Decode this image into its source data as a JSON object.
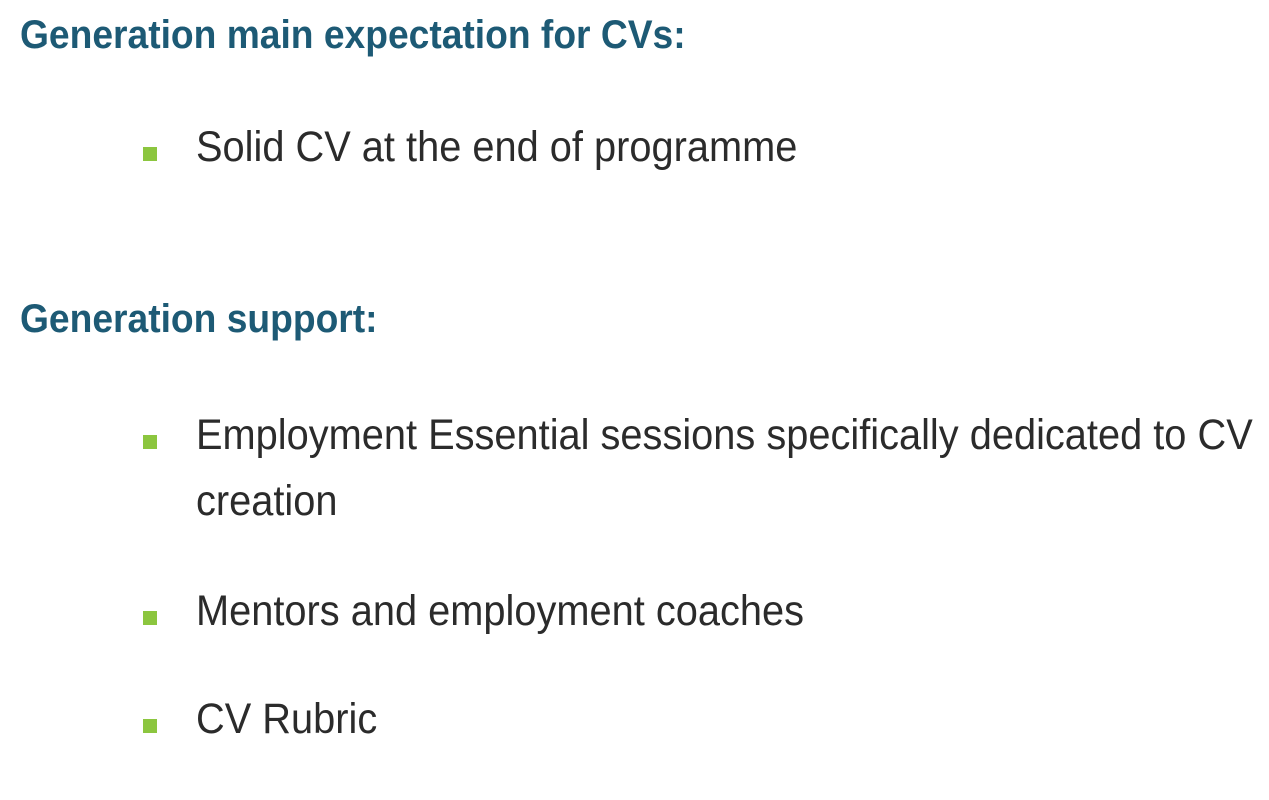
{
  "sections": [
    {
      "heading": "Generation main expectation for CVs:",
      "bullets": [
        "Solid CV at the end of programme"
      ]
    },
    {
      "heading": "Generation support:",
      "bullets": [
        "Employment Essential sessions specifically dedicated to CV creation",
        "Mentors and employment coaches",
        "CV Rubric"
      ]
    }
  ],
  "colors": {
    "heading": "#1d5a75",
    "bullet_marker": "#8cc63f",
    "body_text": "#2b2b2b",
    "background": "#ffffff"
  },
  "icons": {
    "bullet": "green-square-bullet-icon"
  }
}
